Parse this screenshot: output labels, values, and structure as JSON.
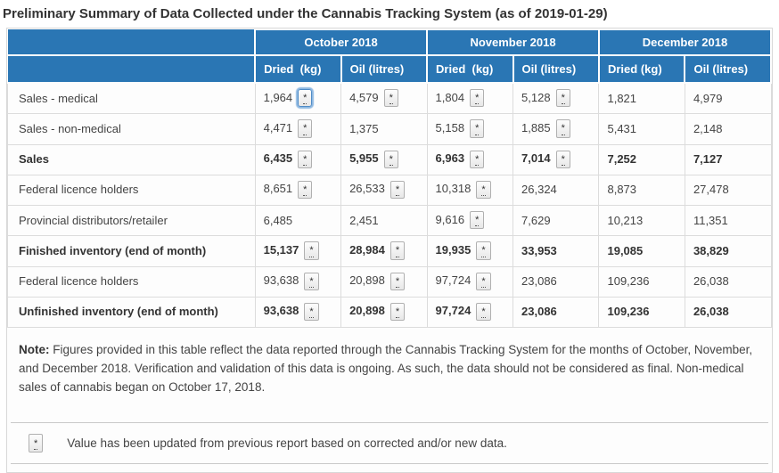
{
  "title": "Preliminary Summary of Data Collected under the Cannabis Tracking System (as of 2019-01-29)",
  "table": {
    "corner_label": "",
    "month_headers": [
      "October 2018",
      "November 2018",
      "December 2018"
    ],
    "sub_headers": [
      "Dried  (kg)",
      "Oil (litres)",
      "Dried  (kg)",
      "Oil (litres)",
      "Dried (kg)",
      "Oil (litres)"
    ],
    "flag_symbol": "*",
    "rows": [
      {
        "label": "Sales - medical",
        "bold": false,
        "cells": [
          {
            "value": "1,964",
            "flag": true,
            "focused": true
          },
          {
            "value": "4,579",
            "flag": true
          },
          {
            "value": "1,804",
            "flag": true
          },
          {
            "value": "5,128",
            "flag": true
          },
          {
            "value": "1,821",
            "flag": false
          },
          {
            "value": "4,979",
            "flag": false
          }
        ]
      },
      {
        "label": "Sales - non-medical",
        "bold": false,
        "cells": [
          {
            "value": "4,471",
            "flag": true
          },
          {
            "value": "1,375",
            "flag": false
          },
          {
            "value": "5,158",
            "flag": true
          },
          {
            "value": "1,885",
            "flag": true
          },
          {
            "value": "5,431",
            "flag": false
          },
          {
            "value": "2,148",
            "flag": false
          }
        ]
      },
      {
        "label": "Sales",
        "bold": true,
        "cells": [
          {
            "value": "6,435",
            "flag": true
          },
          {
            "value": "5,955",
            "flag": true
          },
          {
            "value": "6,963",
            "flag": true
          },
          {
            "value": "7,014",
            "flag": true
          },
          {
            "value": "7,252",
            "flag": false
          },
          {
            "value": "7,127",
            "flag": false
          }
        ]
      },
      {
        "label": "Federal licence holders",
        "bold": false,
        "cells": [
          {
            "value": "8,651",
            "flag": true
          },
          {
            "value": "26,533",
            "flag": true
          },
          {
            "value": "10,318",
            "flag": true
          },
          {
            "value": "26,324",
            "flag": false
          },
          {
            "value": "8,873",
            "flag": false
          },
          {
            "value": "27,478",
            "flag": false
          }
        ]
      },
      {
        "label": "Provincial distributors/retailer",
        "bold": false,
        "cells": [
          {
            "value": "6,485",
            "flag": false
          },
          {
            "value": "2,451",
            "flag": false
          },
          {
            "value": "9,616",
            "flag": true
          },
          {
            "value": "7,629",
            "flag": false
          },
          {
            "value": "10,213",
            "flag": false
          },
          {
            "value": "11,351",
            "flag": false
          }
        ]
      },
      {
        "label": "Finished inventory (end of month)",
        "bold": true,
        "cells": [
          {
            "value": "15,137",
            "flag": true
          },
          {
            "value": "28,984",
            "flag": true
          },
          {
            "value": "19,935",
            "flag": true
          },
          {
            "value": "33,953",
            "flag": false
          },
          {
            "value": "19,085",
            "flag": false
          },
          {
            "value": "38,829",
            "flag": false
          }
        ]
      },
      {
        "label": "Federal licence holders",
        "bold": false,
        "cells": [
          {
            "value": "93,638",
            "flag": true
          },
          {
            "value": "20,898",
            "flag": true
          },
          {
            "value": "97,724",
            "flag": true
          },
          {
            "value": "23,086",
            "flag": false
          },
          {
            "value": "109,236",
            "flag": false
          },
          {
            "value": "26,038",
            "flag": false
          }
        ]
      },
      {
        "label": "Unfinished inventory (end of month)",
        "bold": true,
        "cells": [
          {
            "value": "93,638",
            "flag": true
          },
          {
            "value": "20,898",
            "flag": true
          },
          {
            "value": "97,724",
            "flag": true
          },
          {
            "value": "23,086",
            "flag": false
          },
          {
            "value": "109,236",
            "flag": false
          },
          {
            "value": "26,038",
            "flag": false
          }
        ]
      }
    ]
  },
  "note": {
    "label": "Note:",
    "text": " Figures provided in this table reflect the data reported through the Cannabis Tracking System for the months of October, November, and December 2018. Verification and validation of this data is ongoing. As such, the data should not be considered as final. Non-medical sales of cannabis began on October 17, 2018."
  },
  "legend": {
    "flag_symbol": "*",
    "text": "Value has been updated from previous report based on corrected and/or new data."
  },
  "colors": {
    "header_blue": "#2a76b4"
  }
}
